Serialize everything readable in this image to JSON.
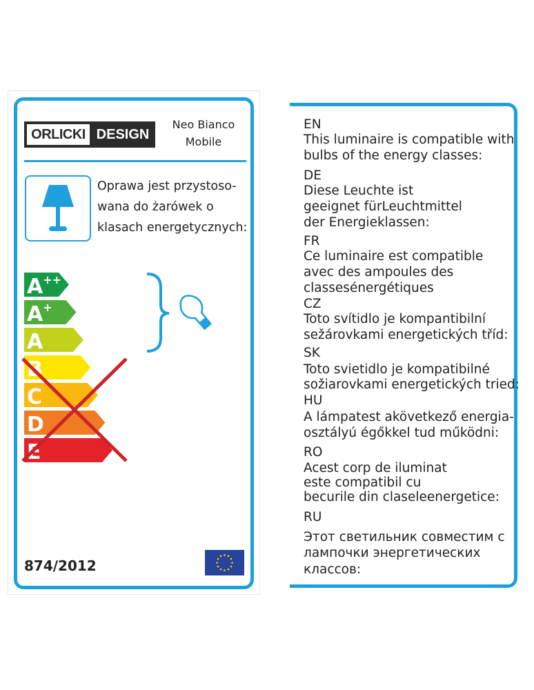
{
  "label": {
    "brand": {
      "left": "ORLICKI",
      "right": "DESIGN"
    },
    "product": [
      "Neo Bianco",
      "Mobile"
    ],
    "polish_text": [
      "Oprawa jest przystoso-",
      "wana do żarówek o",
      "klasach energetycznych:"
    ],
    "energy_classes": [
      {
        "label": "A",
        "sup": "++",
        "color": "#169a48",
        "compatible": true
      },
      {
        "label": "A",
        "sup": "+",
        "color": "#4fae3b",
        "compatible": true
      },
      {
        "label": "A",
        "sup": "",
        "color": "#c2d21c",
        "compatible": true
      },
      {
        "label": "B",
        "sup": "",
        "color": "#ffe600",
        "compatible": false
      },
      {
        "label": "C",
        "sup": "",
        "color": "#fbb80f",
        "compatible": false
      },
      {
        "label": "D",
        "sup": "",
        "color": "#ef7b22",
        "compatible": false
      },
      {
        "label": "E",
        "sup": "",
        "color": "#e3222a",
        "compatible": false
      }
    ],
    "regulation": "874/2012",
    "accent": "#1fa0dc",
    "cross_color": "#cc2229",
    "icons": [
      "table-lamp-icon",
      "light-bulb-icon",
      "eu-flag-icon"
    ]
  },
  "translations": [
    {
      "lang": "EN",
      "lines": [
        "This luminaire is compatible with",
        "bulbs of the energy classes:"
      ]
    },
    {
      "lang": "DE",
      "lines": [
        "Diese Leuchte ist",
        "geeignet fürLeuchtmittel",
        "der Energieklassen:"
      ]
    },
    {
      "lang": "FR",
      "lines": [
        "Ce luminaire est compatible",
        "avec des ampoules des",
        "classesénergétiques"
      ]
    },
    {
      "lang": "CZ",
      "lines": [
        "Toto svítidlo je kompantibilní",
        "sežárovkami energetických tříd:"
      ]
    },
    {
      "lang": "SK",
      "lines": [
        "Toto svietidlo je kompatibilné",
        "sožiarovkami energetických tried:"
      ]
    },
    {
      "lang": "HU",
      "lines": [
        "A lámpatest akövetkező energia-",
        "osztályú égőkkel tud működni:"
      ]
    },
    {
      "lang": "RO",
      "lines": [
        "Acest corp de iluminat",
        "este compatibil cu",
        "becurile din claseleenergetice:"
      ]
    },
    {
      "lang": "RU",
      "lines": [
        "Этот светильник совместим с",
        "лампочки энергетических",
        "классов:"
      ]
    }
  ]
}
